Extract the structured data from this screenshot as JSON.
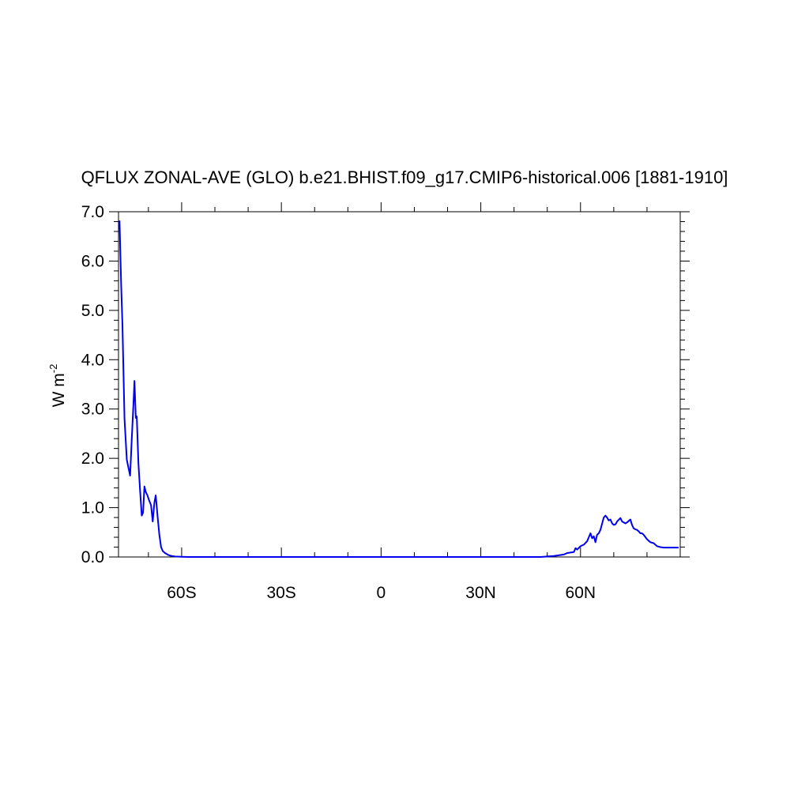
{
  "chart_data": {
    "type": "line",
    "title": "QFLUX ZONAL-AVE (GLO) b.e21.BHIST.f09_g17.CMIP6-historical.006 [1881-1910]",
    "ylabel": {
      "base": "W m",
      "superscript": "-2"
    },
    "xlabel": "",
    "xlim": [
      -79,
      90
    ],
    "ylim": [
      0,
      7
    ],
    "x_ticks": [
      {
        "value": -60,
        "label": "60S"
      },
      {
        "value": -30,
        "label": "30S"
      },
      {
        "value": 0,
        "label": "0"
      },
      {
        "value": 30,
        "label": "30N"
      },
      {
        "value": 60,
        "label": "60N"
      }
    ],
    "y_ticks": [
      {
        "value": 0,
        "label": "0.0"
      },
      {
        "value": 1,
        "label": "1.0"
      },
      {
        "value": 2,
        "label": "2.0"
      },
      {
        "value": 3,
        "label": "3.0"
      },
      {
        "value": 4,
        "label": "4.0"
      },
      {
        "value": 5,
        "label": "5.0"
      },
      {
        "value": 6,
        "label": "6.0"
      },
      {
        "value": 7,
        "label": "7.0"
      }
    ],
    "grid": false,
    "series": [
      {
        "color": "#0000ee",
        "x": [
          -78.7,
          -78.2,
          -77.8,
          -77.2,
          -76.5,
          -75.5,
          -75.0,
          -74.5,
          -74.2,
          -73.8,
          -73.5,
          -73.0,
          -72.5,
          -72.0,
          -71.6,
          -71.2,
          -70.8,
          -70.3,
          -69.8,
          -69.2,
          -68.7,
          -68.2,
          -67.8,
          -67.2,
          -66.7,
          -66.2,
          -65.7,
          -65.0,
          -64.0,
          -63.0,
          -62.0,
          -60.0,
          -58.0,
          -55.0,
          -50.0,
          -40.0,
          -30.0,
          -20.0,
          -10.0,
          0.0,
          10.0,
          20.0,
          30.0,
          40.0,
          45.0,
          48.0,
          50.0,
          52.0,
          54.0,
          55.0,
          56.0,
          57.0,
          58.0,
          58.5,
          59.0,
          60.0,
          61.0,
          62.0,
          62.5,
          63.0,
          63.5,
          64.0,
          64.5,
          65.0,
          65.5,
          66.0,
          67.0,
          67.5,
          68.0,
          68.5,
          69.0,
          69.5,
          70.0,
          70.5,
          71.0,
          72.0,
          72.5,
          73.0,
          73.5,
          74.0,
          74.5,
          75.0,
          75.5,
          76.0,
          76.5,
          77.0,
          77.5,
          78.0,
          78.5,
          79.0,
          80.0,
          81.0,
          82.0,
          83.0,
          84.0,
          85.0,
          86.0,
          87.0,
          88.0,
          89.0,
          89.5
        ],
        "values": [
          6.82,
          5.5,
          4.7,
          2.8,
          1.97,
          1.65,
          2.4,
          3.1,
          3.57,
          2.82,
          2.85,
          1.9,
          1.35,
          0.84,
          0.9,
          1.43,
          1.32,
          1.25,
          1.15,
          1.05,
          0.72,
          1.1,
          1.25,
          0.8,
          0.45,
          0.2,
          0.12,
          0.08,
          0.04,
          0.02,
          0.01,
          0.005,
          0.0,
          0.0,
          0.0,
          0.0,
          0.0,
          0.0,
          0.0,
          0.0,
          0.0,
          0.0,
          0.0,
          0.0,
          0.0,
          0.0,
          0.01,
          0.02,
          0.04,
          0.05,
          0.08,
          0.09,
          0.1,
          0.18,
          0.15,
          0.22,
          0.25,
          0.32,
          0.4,
          0.48,
          0.38,
          0.42,
          0.3,
          0.45,
          0.48,
          0.55,
          0.8,
          0.84,
          0.8,
          0.74,
          0.76,
          0.68,
          0.65,
          0.66,
          0.72,
          0.79,
          0.72,
          0.7,
          0.68,
          0.7,
          0.73,
          0.76,
          0.65,
          0.58,
          0.56,
          0.55,
          0.52,
          0.48,
          0.48,
          0.45,
          0.36,
          0.3,
          0.28,
          0.22,
          0.2,
          0.19,
          0.19,
          0.19,
          0.19,
          0.19,
          0.19
        ]
      }
    ]
  }
}
